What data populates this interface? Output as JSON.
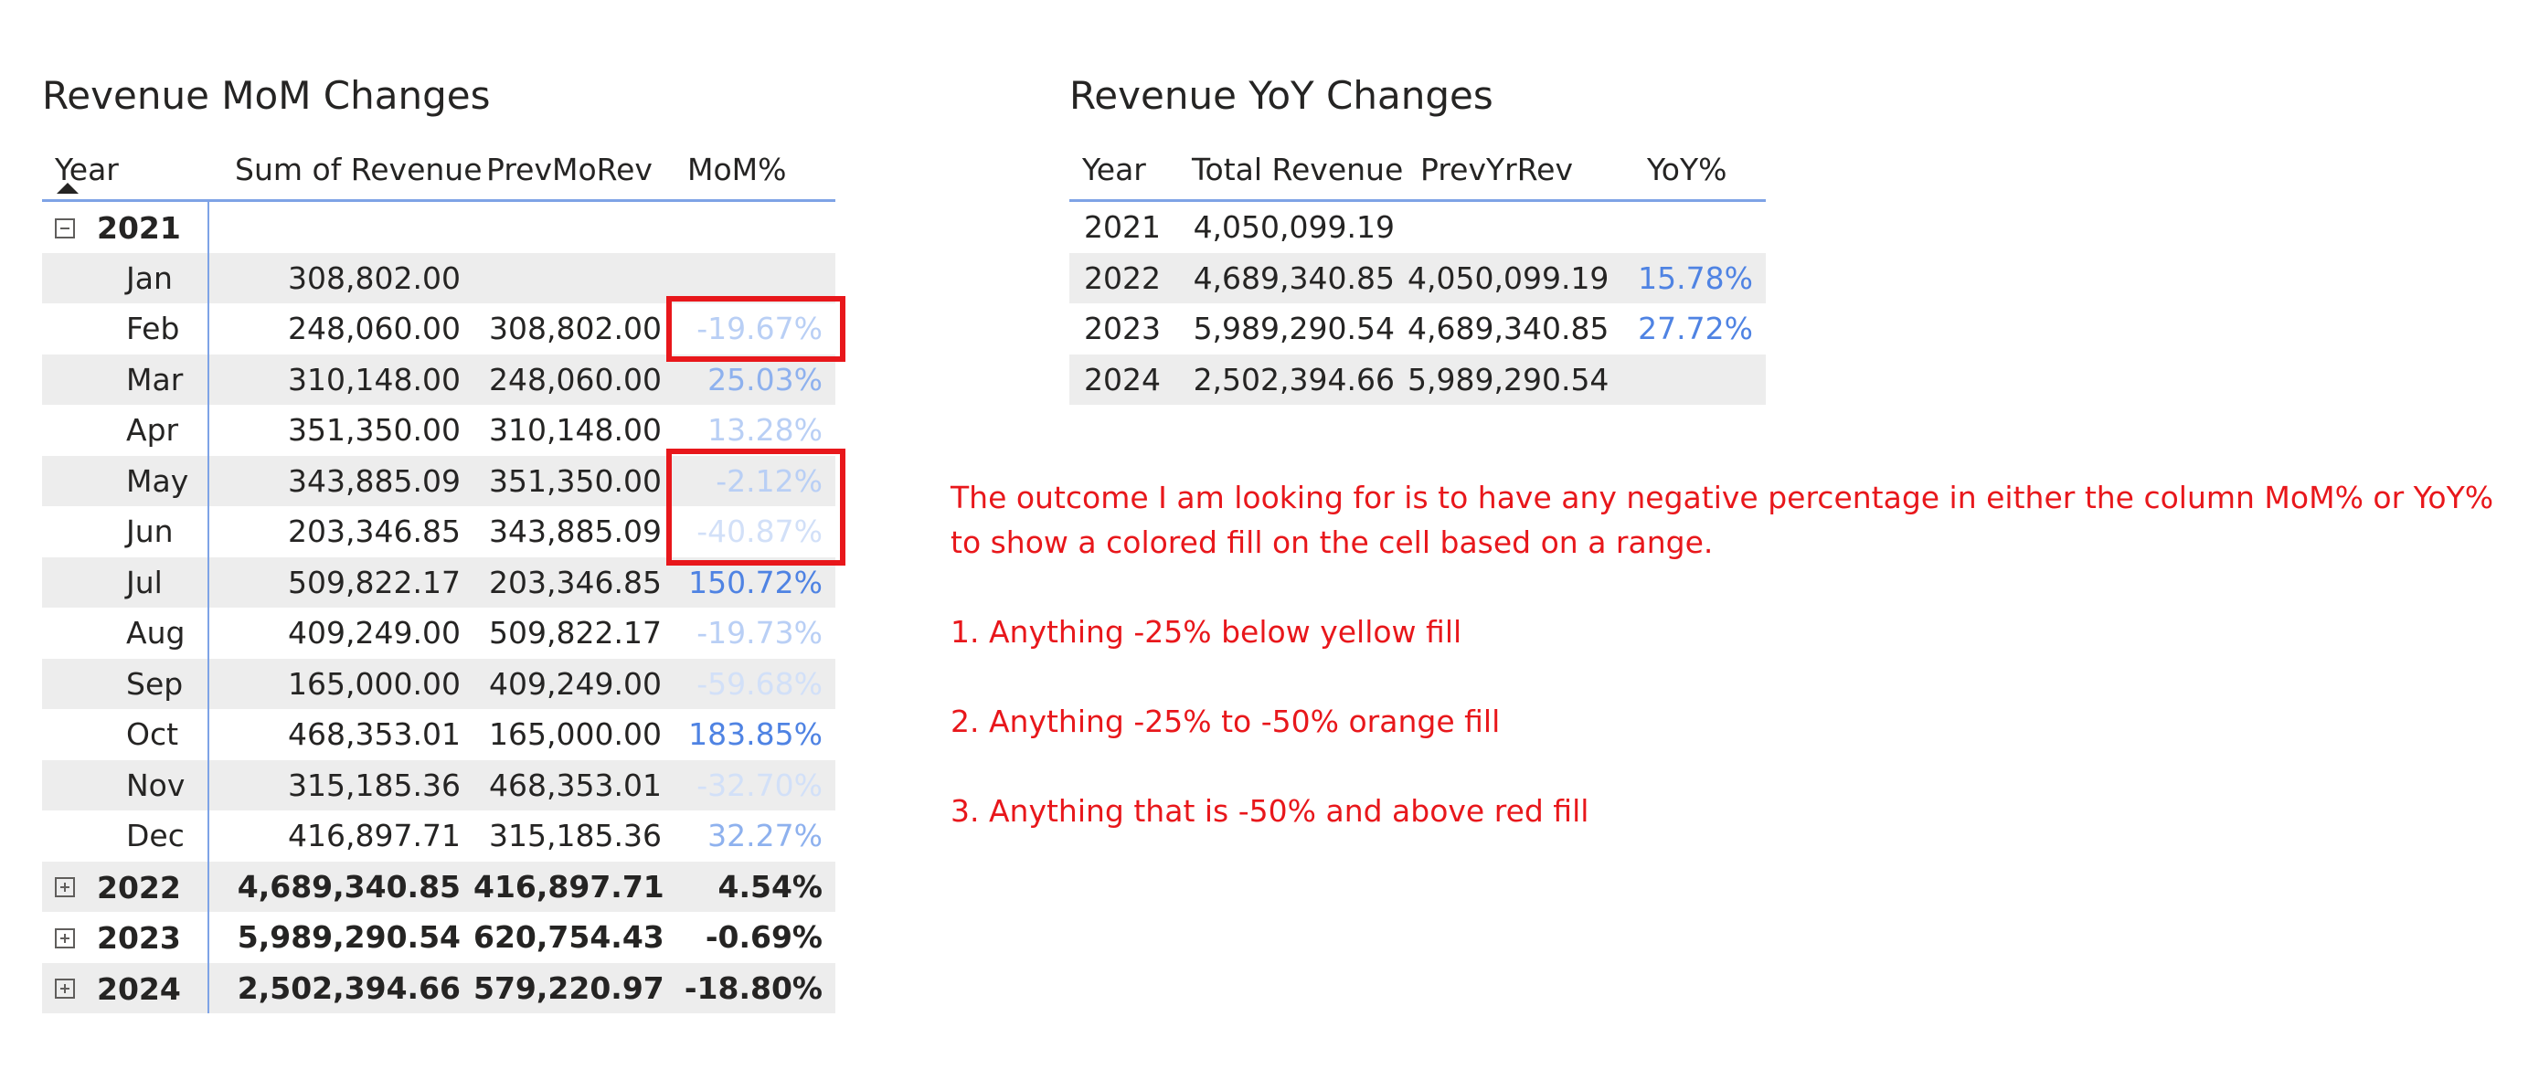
{
  "mom_table": {
    "title": "Revenue MoM Changes",
    "columns": [
      "Year",
      "Sum of Revenue",
      "PrevMoRev",
      "MoM%"
    ],
    "year_2021": {
      "year": "2021"
    },
    "months": [
      {
        "label": "Jan",
        "revenue": "308,802.00",
        "prev": "",
        "pct": ""
      },
      {
        "label": "Feb",
        "revenue": "248,060.00",
        "prev": "308,802.00",
        "pct": "-19.67%"
      },
      {
        "label": "Mar",
        "revenue": "310,148.00",
        "prev": "248,060.00",
        "pct": "25.03%"
      },
      {
        "label": "Apr",
        "revenue": "351,350.00",
        "prev": "310,148.00",
        "pct": "13.28%"
      },
      {
        "label": "May",
        "revenue": "343,885.09",
        "prev": "351,350.00",
        "pct": "-2.12%"
      },
      {
        "label": "Jun",
        "revenue": "203,346.85",
        "prev": "343,885.09",
        "pct": "-40.87%"
      },
      {
        "label": "Jul",
        "revenue": "509,822.17",
        "prev": "203,346.85",
        "pct": "150.72%"
      },
      {
        "label": "Aug",
        "revenue": "409,249.00",
        "prev": "509,822.17",
        "pct": "-19.73%"
      },
      {
        "label": "Sep",
        "revenue": "165,000.00",
        "prev": "409,249.00",
        "pct": "-59.68%"
      },
      {
        "label": "Oct",
        "revenue": "468,353.01",
        "prev": "165,000.00",
        "pct": "183.85%"
      },
      {
        "label": "Nov",
        "revenue": "315,185.36",
        "prev": "468,353.01",
        "pct": "-32.70%"
      },
      {
        "label": "Dec",
        "revenue": "416,897.71",
        "prev": "315,185.36",
        "pct": "32.27%"
      }
    ],
    "year_rows": [
      {
        "year": "2022",
        "revenue": "4,689,340.85",
        "prev": "416,897.71",
        "pct": "4.54%"
      },
      {
        "year": "2023",
        "revenue": "5,989,290.54",
        "prev": "620,754.43",
        "pct": "-0.69%"
      },
      {
        "year": "2024",
        "revenue": "2,502,394.66",
        "prev": "579,220.97",
        "pct": "-18.80%"
      }
    ]
  },
  "yoy_table": {
    "title": "Revenue YoY Changes",
    "columns": [
      "Year",
      "Total Revenue",
      "PrevYrRev",
      "YoY%"
    ],
    "rows": [
      {
        "year": "2021",
        "revenue": "4,050,099.19",
        "prev": "",
        "pct": ""
      },
      {
        "year": "2022",
        "revenue": "4,689,340.85",
        "prev": "4,050,099.19",
        "pct": "15.78%"
      },
      {
        "year": "2023",
        "revenue": "5,989,290.54",
        "prev": "4,689,340.85",
        "pct": "27.72%"
      },
      {
        "year": "2024",
        "revenue": "2,502,394.66",
        "prev": "5,989,290.54",
        "pct": ""
      }
    ]
  },
  "note": {
    "intro": "The outcome I am looking for is to have any negative percentage in either the column MoM% or YoY% to show a colored fill on the cell based on a range.",
    "rule1": "1. Anything -25% below yellow fill",
    "rule2": "2. Anything -25% to -50% orange fill",
    "rule3": "3. Anything that is -50% and above red fill"
  },
  "colors": {
    "header_rule": "#7ea3e6",
    "row_shade": "#ededed",
    "highlight_box": "#e8171b",
    "note_text": "#e8171b",
    "pct_strong": "#4f83e3",
    "pct_light": "#b9cff5"
  },
  "icons": {
    "sort": "sort-ascending-icon",
    "collapse": "collapse-minus-icon",
    "expand": "expand-plus-icon"
  }
}
